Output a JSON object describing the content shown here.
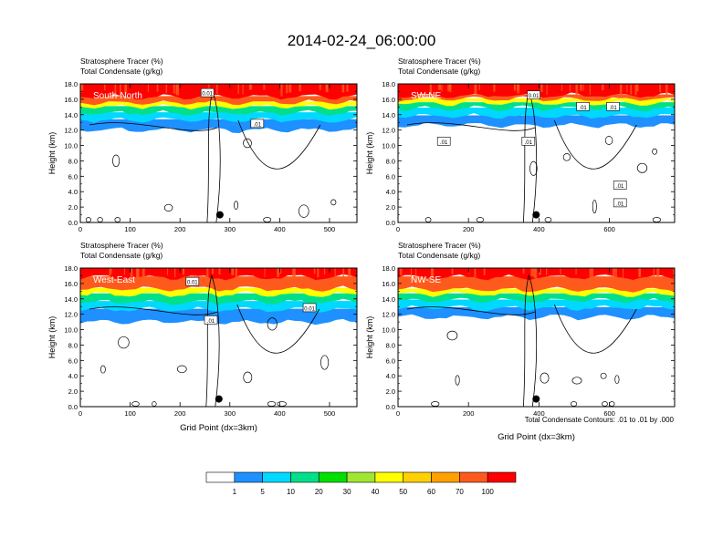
{
  "figure": {
    "title": "2014-02-24_06:00:00",
    "footnote": "Total Condensate Contours: .01 to .01 by .000"
  },
  "colors": {
    "bins": [
      "#ffffff",
      "#1e90ff",
      "#00d8ff",
      "#00e08a",
      "#00e000",
      "#a0e632",
      "#ffff00",
      "#ffd000",
      "#ffa000",
      "#ff5a1e",
      "#ff0000"
    ],
    "contour": "#000000"
  },
  "colorbar": {
    "labels": [
      "1",
      "5",
      "10",
      "20",
      "30",
      "40",
      "50",
      "60",
      "70",
      "100"
    ]
  },
  "chart_data": [
    {
      "type": "heatmap",
      "panel_label": "South-North",
      "subtitle_1": "Stratosphere Tracer   (%)",
      "subtitle_2": "Total Condensate   (g/kg)",
      "xlabel": "",
      "ylabel": "Height (km)",
      "xlim": [
        0,
        555
      ],
      "ylim": [
        0,
        18
      ],
      "xticks": [
        "0",
        "100",
        "200",
        "300",
        "400",
        "500"
      ],
      "xtick_values": [
        0,
        100,
        200,
        300,
        400,
        500
      ],
      "yticks": [
        "0.0",
        "2.0",
        "4.0",
        "6.0",
        "8.0",
        "10.0",
        "12.0",
        "14.0",
        "16.0",
        "18.0"
      ],
      "marker": {
        "x": 280,
        "y": 1.0
      },
      "contour_labels": [
        {
          "text": "0.01",
          "x": 255,
          "y": 16.8
        },
        {
          "text": ".01",
          "x": 355,
          "y": 12.8
        }
      ],
      "bands": [
        {
          "level": "100",
          "bottom": 16.3,
          "top": 18.0
        },
        {
          "level": "70",
          "bottom": 15.6,
          "top": 16.3
        },
        {
          "level": "50",
          "bottom": 15.0,
          "top": 15.6
        },
        {
          "level": "20",
          "bottom": 14.2,
          "top": 15.0
        },
        {
          "level": "10",
          "bottom": 13.3,
          "top": 14.2
        },
        {
          "level": "5",
          "bottom": 12.0,
          "top": 13.3
        }
      ]
    },
    {
      "type": "heatmap",
      "panel_label": "SW-NE",
      "subtitle_1": "Stratosphere Tracer   (%)",
      "subtitle_2": "Total Condensate   (g/kg)",
      "xlabel": "",
      "ylabel": "Height (km)",
      "xlim": [
        0,
        785
      ],
      "ylim": [
        0,
        18
      ],
      "xticks": [
        "0",
        "200",
        "400",
        "600"
      ],
      "xtick_values": [
        0,
        200,
        400,
        600
      ],
      "yticks": [
        "0.0",
        "2.0",
        "4.0",
        "6.0",
        "8.0",
        "10.0",
        "12.0",
        "14.0",
        "16.0",
        "18.0"
      ],
      "marker": {
        "x": 392,
        "y": 1.0
      },
      "contour_labels": [
        {
          "text": "0.01",
          "x": 385,
          "y": 16.5
        },
        {
          "text": ".01",
          "x": 130,
          "y": 10.5
        },
        {
          "text": ".01",
          "x": 370,
          "y": 10.5
        },
        {
          "text": ".01",
          "x": 525,
          "y": 15.0
        },
        {
          "text": ".01",
          "x": 610,
          "y": 15.0
        },
        {
          "text": ".01",
          "x": 630,
          "y": 2.5
        },
        {
          "text": ".01",
          "x": 630,
          "y": 4.8
        }
      ],
      "bands": [
        {
          "level": "100",
          "bottom": 16.5,
          "top": 18.0
        },
        {
          "level": "70",
          "bottom": 16.0,
          "top": 16.5
        },
        {
          "level": "50",
          "bottom": 15.5,
          "top": 16.0
        },
        {
          "level": "20",
          "bottom": 14.8,
          "top": 15.5
        },
        {
          "level": "10",
          "bottom": 13.8,
          "top": 14.8
        },
        {
          "level": "5",
          "bottom": 12.6,
          "top": 13.8
        }
      ]
    },
    {
      "type": "heatmap",
      "panel_label": "West-East",
      "subtitle_1": "Stratosphere Tracer   (%)",
      "subtitle_2": "Total Condensate   (g/kg)",
      "xlabel": "Grid Point (dx=3km)",
      "ylabel": "Height (km)",
      "xlim": [
        0,
        555
      ],
      "ylim": [
        0,
        18
      ],
      "xticks": [
        "0",
        "100",
        "200",
        "300",
        "400",
        "500"
      ],
      "xtick_values": [
        0,
        100,
        200,
        300,
        400,
        500
      ],
      "yticks": [
        "0.0",
        "2.0",
        "4.0",
        "6.0",
        "8.0",
        "10.0",
        "12.0",
        "14.0",
        "16.0",
        "18.0"
      ],
      "marker": {
        "x": 278,
        "y": 1.0
      },
      "contour_labels": [
        {
          "text": "0.01",
          "x": 225,
          "y": 16.2
        },
        {
          "text": ".01",
          "x": 262,
          "y": 11.2
        },
        {
          "text": "0.01",
          "x": 460,
          "y": 12.8
        }
      ],
      "bands": [
        {
          "level": "100",
          "bottom": 16.8,
          "top": 18.0
        },
        {
          "level": "70",
          "bottom": 15.3,
          "top": 16.8
        },
        {
          "level": "50",
          "bottom": 14.6,
          "top": 15.3
        },
        {
          "level": "20",
          "bottom": 13.6,
          "top": 14.6
        },
        {
          "level": "10",
          "bottom": 12.6,
          "top": 13.6
        },
        {
          "level": "5",
          "bottom": 11.0,
          "top": 12.6
        }
      ]
    },
    {
      "type": "heatmap",
      "panel_label": "NW-SE",
      "subtitle_1": "Stratosphere Tracer   (%)",
      "subtitle_2": "Total Condensate   (g/kg)",
      "xlabel": "Grid Point (dx=3km)",
      "ylabel": "Height (km)",
      "xlim": [
        0,
        785
      ],
      "ylim": [
        0,
        18
      ],
      "xticks": [
        "0",
        "200",
        "400",
        "600"
      ],
      "xtick_values": [
        0,
        200,
        400,
        600
      ],
      "yticks": [
        "0.0",
        "2.0",
        "4.0",
        "6.0",
        "8.0",
        "10.0",
        "12.0",
        "14.0",
        "16.0",
        "18.0"
      ],
      "marker": {
        "x": 392,
        "y": 1.0
      },
      "contour_labels": [],
      "bands": [
        {
          "level": "100",
          "bottom": 16.8,
          "top": 18.0
        },
        {
          "level": "70",
          "bottom": 15.2,
          "top": 16.8
        },
        {
          "level": "50",
          "bottom": 14.6,
          "top": 15.2
        },
        {
          "level": "20",
          "bottom": 13.8,
          "top": 14.6
        },
        {
          "level": "10",
          "bottom": 12.8,
          "top": 13.8
        },
        {
          "level": "5",
          "bottom": 11.6,
          "top": 12.8
        }
      ]
    }
  ]
}
